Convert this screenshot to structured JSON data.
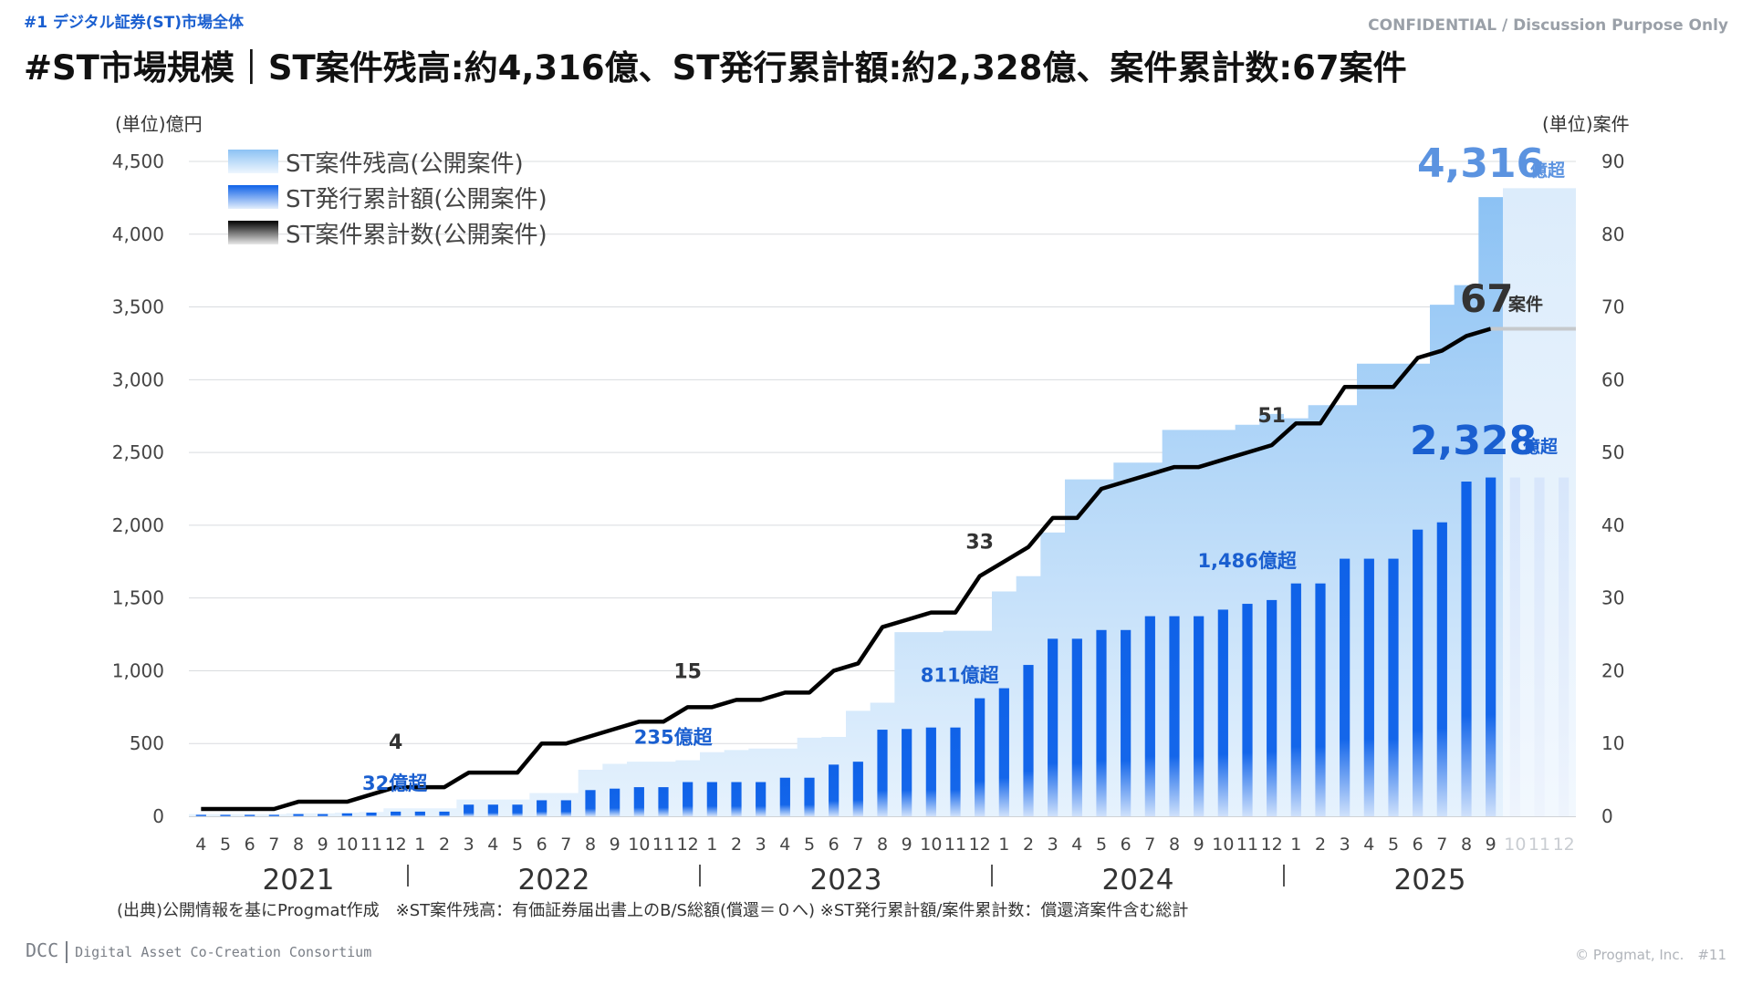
{
  "header": {
    "section_label": "#1 デジタル証券(ST)市場全体",
    "confidential": "CONFIDENTIAL / Discussion Purpose Only",
    "title": "#ST市場規模｜ST案件残高:約4,316億、ST発行累計額:約2,328億、案件累計数:67案件"
  },
  "footer": {
    "source_note": "(出典)公開情報を基にProgmat作成　※ST案件残高：有価証券届出書上のB/S総額(償還＝０へ) ※ST発行累計額/案件累計数：償還済案件含む総計",
    "logo_main": "DCC",
    "logo_sub": "Digital Asset Co-Creation Consortium",
    "copyright": "© Progmat, Inc.　#11"
  },
  "colors": {
    "outstanding_area": "#9dcaf5",
    "issuance_bar": "#0f62e8",
    "count_line": "#000000",
    "highlight_blue": "#1a5fd0",
    "highlight_light_blue": "#5b93e0"
  },
  "chart_data": {
    "type": "bar-line-area",
    "left_axis_label": "(単位)億円",
    "right_axis_label": "(単位)案件",
    "ylim_left": [
      0,
      4500
    ],
    "ylim_right": [
      0,
      90
    ],
    "y_ticks_left": [
      "0",
      "500",
      "1,000",
      "1,500",
      "2,000",
      "2,500",
      "3,000",
      "3,500",
      "4,000",
      "4,500"
    ],
    "y_ticks_right": [
      "0",
      "10",
      "20",
      "30",
      "40",
      "50",
      "60",
      "70",
      "80",
      "90"
    ],
    "grid": true,
    "legend_position": "top-left",
    "legend": [
      "ST案件残高(公開案件)",
      "ST発行累計額(公開案件)",
      "ST案件累計数(公開案件)"
    ],
    "months": [
      "4",
      "5",
      "6",
      "7",
      "8",
      "9",
      "10",
      "11",
      "12",
      "1",
      "2",
      "3",
      "4",
      "5",
      "6",
      "7",
      "8",
      "9",
      "10",
      "11",
      "12",
      "1",
      "2",
      "3",
      "4",
      "5",
      "6",
      "7",
      "8",
      "9",
      "10",
      "11",
      "12",
      "1",
      "2",
      "3",
      "4",
      "5",
      "6",
      "7",
      "8",
      "9",
      "10",
      "11",
      "12",
      "1",
      "2",
      "3",
      "4",
      "5",
      "6",
      "7",
      "8",
      "9",
      "10",
      "11",
      "12"
    ],
    "years": [
      {
        "label": "2021",
        "start": 0,
        "end": 8
      },
      {
        "label": "2022",
        "start": 9,
        "end": 20
      },
      {
        "label": "2023",
        "start": 21,
        "end": 32
      },
      {
        "label": "2024",
        "start": 33,
        "end": 44
      },
      {
        "label": "2025",
        "start": 45,
        "end": 56
      }
    ],
    "projected_from_index": 54,
    "series": [
      {
        "name": "ST案件残高(公開案件)",
        "kind": "area",
        "axis": "left",
        "values": [
          15,
          15,
          15,
          15,
          20,
          20,
          25,
          30,
          55,
          55,
          55,
          115,
          115,
          115,
          160,
          160,
          320,
          360,
          375,
          375,
          385,
          440,
          455,
          465,
          465,
          540,
          545,
          725,
          780,
          1265,
          1265,
          1275,
          1275,
          1545,
          1650,
          1950,
          2315,
          2315,
          2430,
          2430,
          2655,
          2655,
          2655,
          2690,
          2765,
          2735,
          2825,
          2825,
          3110,
          3110,
          3110,
          3515,
          3650,
          4255,
          4316,
          4316,
          4316
        ]
      },
      {
        "name": "ST発行累計額(公開案件)",
        "kind": "bar",
        "axis": "left",
        "values": [
          10,
          10,
          10,
          10,
          15,
          15,
          20,
          25,
          32,
          32,
          32,
          80,
          80,
          80,
          110,
          110,
          180,
          190,
          200,
          200,
          235,
          235,
          235,
          235,
          265,
          265,
          355,
          375,
          595,
          600,
          610,
          610,
          811,
          880,
          1040,
          1220,
          1220,
          1280,
          1280,
          1375,
          1375,
          1375,
          1420,
          1460,
          1486,
          1600,
          1600,
          1770,
          1770,
          1770,
          1970,
          2020,
          2300,
          2328,
          2328,
          2328,
          2328
        ]
      },
      {
        "name": "ST案件累計数(公開案件)",
        "kind": "line",
        "axis": "right",
        "values": [
          1,
          1,
          1,
          1,
          2,
          2,
          2,
          3,
          4,
          4,
          4,
          6,
          6,
          6,
          10,
          10,
          11,
          12,
          13,
          13,
          15,
          15,
          16,
          16,
          17,
          17,
          20,
          21,
          26,
          27,
          28,
          28,
          33,
          35,
          37,
          41,
          41,
          45,
          46,
          47,
          48,
          48,
          49,
          50,
          51,
          54,
          54,
          59,
          59,
          59,
          63,
          64,
          66,
          67,
          67,
          67,
          67
        ]
      }
    ],
    "annotations": {
      "count_4": "4",
      "count_15": "15",
      "count_33": "33",
      "count_51": "51",
      "count_67": "67",
      "count_67_unit": "案件",
      "issuance_32": "32億超",
      "issuance_235": "235億超",
      "issuance_811": "811億超",
      "issuance_1486": "1,486億超",
      "issuance_2328": "2,328",
      "issuance_2328_unit": "億超",
      "outstanding_4316": "4,316",
      "outstanding_4316_unit": "億超"
    }
  }
}
